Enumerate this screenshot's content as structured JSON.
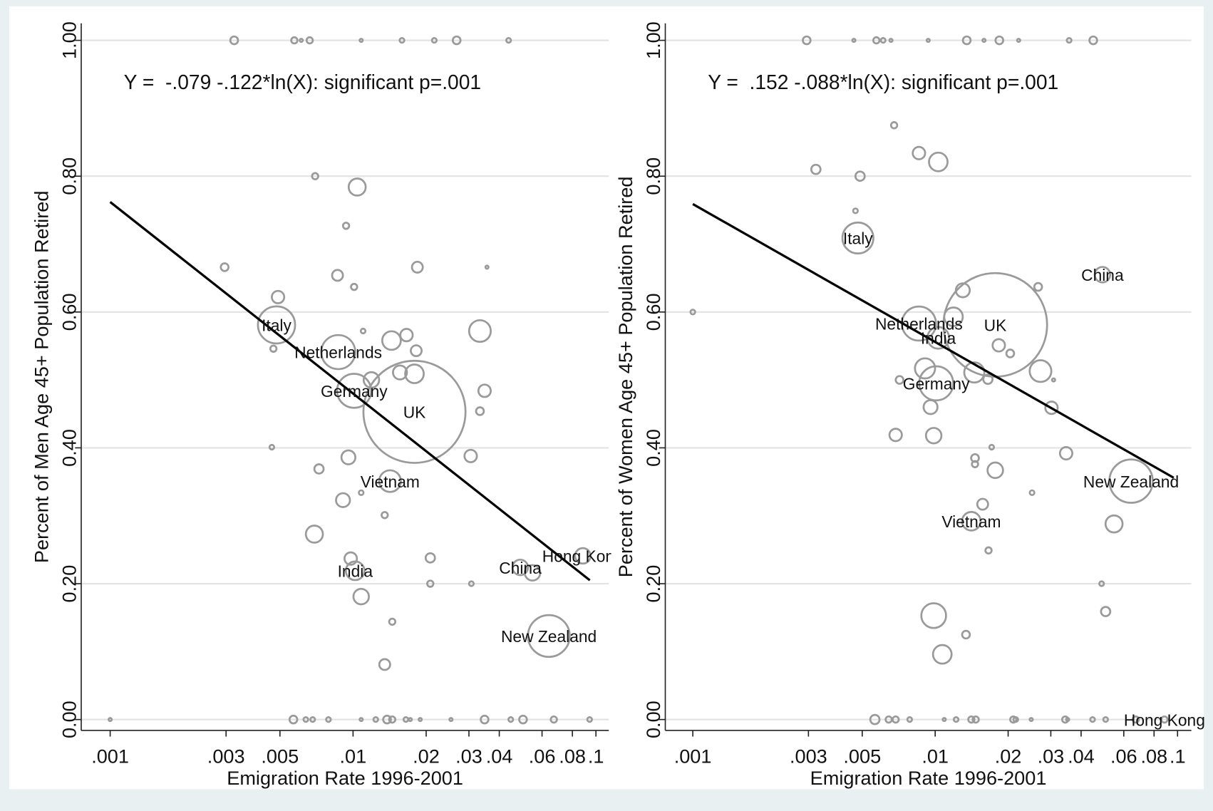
{
  "chart_data": [
    {
      "type": "scatter",
      "log_x": true,
      "grid": true,
      "color": "#9a9a9a",
      "line_color": "#000000",
      "annotation": "Y =  -.079 -.122*ln(X): significant p=.001",
      "x_label": "Emigration Rate 1996-2001",
      "y_label": "Percent of Men Age 45+ Population Retired",
      "xlim": [
        0.00076,
        0.113
      ],
      "ylim": [
        -0.016,
        1.025
      ],
      "xticks": [
        {
          "value": 0.001,
          "label": ".001"
        },
        {
          "value": 0.003,
          "label": ".003"
        },
        {
          "value": 0.005,
          "label": ".005"
        },
        {
          "value": 0.01,
          "label": ".01"
        },
        {
          "value": 0.02,
          "label": ".02"
        },
        {
          "value": 0.03,
          "label": ".03"
        },
        {
          "value": 0.04,
          "label": ".04"
        },
        {
          "value": 0.06,
          "label": ".06"
        },
        {
          "value": 0.08,
          "label": ".08"
        },
        {
          "value": 0.1,
          "label": ".1"
        }
      ],
      "yticks": [
        {
          "value": 0,
          "label": "0.00"
        },
        {
          "value": 0.2,
          "label": "0.20"
        },
        {
          "value": 0.4,
          "label": "0.40"
        },
        {
          "value": 0.6,
          "label": "0.60"
        },
        {
          "value": 0.8,
          "label": "0.80"
        },
        {
          "value": 1,
          "label": "1.00"
        }
      ],
      "x": [
        0.00324,
        0.00573,
        0.00612,
        0.00663,
        0.0108,
        0.0159,
        0.0216,
        0.0267,
        0.0437,
        0.00698,
        0.0104,
        0.00936,
        0.00296,
        0.0184,
        0.0356,
        0.00863,
        0.0101,
        0.00491,
        0.00484,
        0.0333,
        0.011,
        0.0047,
        0.0144,
        0.0166,
        0.0182,
        0.00869,
        0.0101,
        0.0119,
        0.0156,
        0.0179,
        0.0348,
        0.0333,
        0.0179,
        0.00957,
        0.0305,
        0.00724,
        0.00463,
        0.0142,
        0.00909,
        0.0108,
        0.0135,
        0.00693,
        0.00978,
        0.0102,
        0.0208,
        0.0208,
        0.0307,
        0.0488,
        0.0548,
        0.0883,
        0.0108,
        0.0145,
        0.064,
        0.0135,
        0.001,
        0.00568,
        0.00639,
        0.00682,
        0.00792,
        0.0108,
        0.0124,
        0.0138,
        0.0145,
        0.0165,
        0.0172,
        0.0189,
        0.0253,
        0.0348,
        0.0446,
        0.0501,
        0.0671,
        0.0942
      ],
      "values": [
        1,
        1,
        1,
        1,
        1,
        1,
        1,
        1,
        1,
        0.8,
        0.784,
        0.727,
        0.666,
        0.666,
        0.666,
        0.654,
        0.637,
        0.622,
        0.581,
        0.572,
        0.572,
        0.546,
        0.558,
        0.566,
        0.543,
        0.541,
        0.484,
        0.5,
        0.511,
        0.509,
        0.484,
        0.454,
        0.453,
        0.386,
        0.388,
        0.369,
        0.401,
        0.351,
        0.323,
        0.334,
        0.301,
        0.273,
        0.237,
        0.219,
        0.238,
        0.2,
        0.2,
        0.224,
        0.216,
        0.241,
        0.181,
        0.144,
        0.123,
        0.081,
        0,
        0,
        0,
        0,
        0,
        0,
        0,
        0,
        0,
        0,
        0,
        0,
        0,
        0,
        0,
        0,
        0,
        0
      ],
      "sizes": [
        5,
        4,
        2,
        4,
        2,
        3,
        3,
        5,
        3,
        4,
        11,
        4,
        5,
        7,
        2,
        7,
        4,
        8,
        24,
        14,
        3,
        4,
        12,
        8,
        7,
        22,
        22,
        10,
        9,
        12,
        8,
        5,
        66,
        9,
        8,
        6,
        3,
        14,
        9,
        3,
        4,
        11,
        8,
        12,
        6,
        4,
        3,
        10,
        10,
        10,
        10,
        4,
        27,
        7,
        2,
        5,
        3,
        3,
        3,
        2,
        3,
        5,
        4,
        3,
        2,
        2,
        2,
        5,
        3,
        5,
        4,
        3
      ],
      "labels": [
        null,
        null,
        null,
        null,
        null,
        null,
        null,
        null,
        null,
        null,
        null,
        null,
        null,
        null,
        null,
        null,
        null,
        null,
        "Italy",
        null,
        null,
        null,
        null,
        null,
        null,
        "Netherlands",
        "Germany",
        null,
        null,
        null,
        null,
        null,
        "UK",
        null,
        null,
        null,
        null,
        "Vietnam",
        null,
        null,
        null,
        null,
        null,
        "India",
        null,
        null,
        null,
        "China",
        null,
        "Hong Kong",
        null,
        null,
        "New Zealand",
        null,
        null,
        null,
        null,
        null,
        null,
        null,
        null,
        null,
        null,
        null,
        null,
        null,
        null,
        null,
        null,
        null,
        null,
        null
      ],
      "fit_line": {
        "x": [
          0.001,
          0.0944
        ],
        "y": [
          0.762,
          0.205
        ]
      }
    },
    {
      "type": "scatter",
      "log_x": true,
      "grid": true,
      "color": "#9a9a9a",
      "line_color": "#000000",
      "annotation": "Y =  .152 -.088*ln(X): significant p=.001",
      "x_label": "Emigration Rate 1996-2001",
      "y_label": "Percent of Women Age 45+ Population Retired",
      "xlim": [
        0.00077,
        0.114
      ],
      "ylim": [
        -0.016,
        1.025
      ],
      "xticks": [
        {
          "value": 0.001,
          "label": ".001"
        },
        {
          "value": 0.003,
          "label": ".003"
        },
        {
          "value": 0.005,
          "label": ".005"
        },
        {
          "value": 0.01,
          "label": ".01"
        },
        {
          "value": 0.02,
          "label": ".02"
        },
        {
          "value": 0.03,
          "label": ".03"
        },
        {
          "value": 0.04,
          "label": ".04"
        },
        {
          "value": 0.06,
          "label": ".06"
        },
        {
          "value": 0.08,
          "label": ".08"
        },
        {
          "value": 0.1,
          "label": ".1"
        }
      ],
      "yticks": [
        {
          "value": 0,
          "label": "0.00"
        },
        {
          "value": 0.2,
          "label": "0.20"
        },
        {
          "value": 0.4,
          "label": "0.40"
        },
        {
          "value": 0.6,
          "label": "0.60"
        },
        {
          "value": 0.8,
          "label": "0.80"
        },
        {
          "value": 1,
          "label": "1.00"
        }
      ],
      "x": [
        0.00295,
        0.00462,
        0.00572,
        0.0061,
        0.00657,
        0.00936,
        0.0135,
        0.0159,
        0.0184,
        0.0221,
        0.0357,
        0.0449,
        0.00677,
        0.00857,
        0.0103,
        0.00322,
        0.0049,
        0.00469,
        0.0048,
        0.001,
        0.049,
        0.013,
        0.0266,
        0.00857,
        0.0119,
        0.0177,
        0.0103,
        0.0183,
        0.0204,
        0.0145,
        0.0165,
        0.0272,
        0.0308,
        0.00713,
        0.00908,
        0.0101,
        0.00957,
        0.0302,
        0.00687,
        0.00986,
        0.0171,
        0.0146,
        0.0146,
        0.0347,
        0.0177,
        0.0251,
        0.0643,
        0.0157,
        0.0141,
        0.0547,
        0.0166,
        0.0486,
        0.0505,
        0.00986,
        0.0134,
        0.0107,
        0.00564,
        0.00643,
        0.00687,
        0.00785,
        0.0109,
        0.0122,
        0.0141,
        0.0147,
        0.021,
        0.0215,
        0.0249,
        0.0344,
        0.0352,
        0.0446,
        0.0505,
        0.0672,
        0.0883
      ],
      "values": [
        1,
        1,
        1,
        1,
        1,
        1,
        1,
        1,
        1,
        1,
        1,
        1,
        0.875,
        0.834,
        0.821,
        0.81,
        0.8,
        0.749,
        0.709,
        0.6,
        0.655,
        0.632,
        0.637,
        0.583,
        0.593,
        0.581,
        0.562,
        0.551,
        0.539,
        0.511,
        0.501,
        0.513,
        0.5,
        0.5,
        0.517,
        0.495,
        0.46,
        0.459,
        0.419,
        0.418,
        0.401,
        0.385,
        0.376,
        0.392,
        0.367,
        0.334,
        0.351,
        0.317,
        0.292,
        0.288,
        0.249,
        0.2,
        0.159,
        0.153,
        0.125,
        0.096,
        0,
        0,
        0,
        0,
        0,
        0,
        0,
        0,
        0,
        0,
        0,
        0,
        0,
        0,
        0,
        0,
        0
      ],
      "sizes": [
        5,
        2,
        4,
        3,
        2,
        2,
        5,
        2,
        5,
        2,
        3,
        5,
        4,
        8,
        12,
        6,
        6,
        3,
        20,
        3,
        10,
        9,
        5,
        22,
        12,
        67,
        14,
        8,
        5,
        13,
        6,
        14,
        2,
        5,
        13,
        22,
        9,
        8,
        8,
        10,
        3,
        5,
        4,
        8,
        10,
        3,
        28,
        7,
        12,
        11,
        4,
        3,
        6,
        16,
        5,
        12,
        6,
        4,
        4,
        3,
        2,
        3,
        4,
        4,
        4,
        3,
        2,
        4,
        2,
        3,
        3,
        4,
        4
      ],
      "labels": [
        null,
        null,
        null,
        null,
        null,
        null,
        null,
        null,
        null,
        null,
        null,
        null,
        null,
        null,
        null,
        null,
        null,
        null,
        "Italy",
        null,
        "China",
        null,
        null,
        "Netherlands",
        null,
        "UK",
        "India",
        null,
        null,
        null,
        null,
        null,
        null,
        null,
        null,
        "Germany",
        null,
        null,
        null,
        null,
        null,
        null,
        null,
        null,
        null,
        null,
        "New Zealand",
        null,
        "Vietnam",
        null,
        null,
        null,
        null,
        null,
        null,
        null,
        null,
        null,
        null,
        null,
        null,
        null,
        null,
        null,
        null,
        null,
        null,
        null,
        null,
        null,
        null,
        null,
        "Hong Kong"
      ],
      "fit_line": {
        "x": [
          0.001,
          0.0964
        ],
        "y": [
          0.759,
          0.356
        ]
      }
    }
  ]
}
